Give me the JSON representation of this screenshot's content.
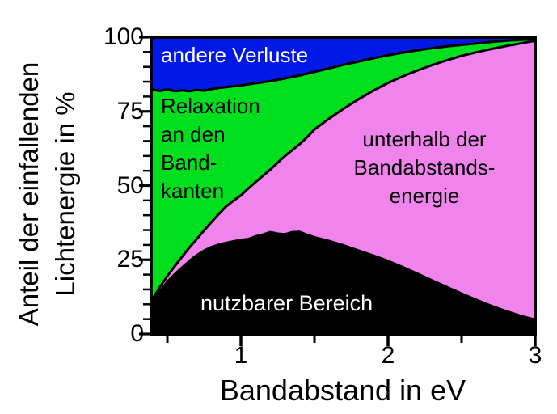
{
  "figure": {
    "background": "#ffffff"
  },
  "chart_data": {
    "type": "area",
    "stacked": true,
    "xlabel": "Bandabstand in eV",
    "ylabel_lines": [
      "Anteil der einfallenden",
      "Lichtenergie in %"
    ],
    "xlim": [
      0.39,
      3.0
    ],
    "ylim": [
      0,
      100
    ],
    "grid": false,
    "legend": "labels drawn inside areas",
    "x_major_ticks": [
      1,
      2,
      3
    ],
    "x_major_tick_labels": [
      "1",
      "2",
      "3"
    ],
    "x_minor_ticks": [
      0.5,
      1.5,
      2.5
    ],
    "y_major_ticks": [
      0,
      25,
      50,
      75,
      100
    ],
    "y_major_tick_labels": [
      "0",
      "25",
      "50",
      "75",
      "100"
    ],
    "y_minor_ticks": [
      5,
      10,
      15,
      20,
      30,
      35,
      40,
      45,
      55,
      60,
      65,
      70,
      80,
      85,
      90,
      95
    ],
    "outline_color": "#000000",
    "x": [
      0.39,
      0.45,
      0.5,
      0.55,
      0.6,
      0.65,
      0.7,
      0.75,
      0.8,
      0.85,
      0.9,
      0.95,
      1.0,
      1.05,
      1.1,
      1.15,
      1.2,
      1.25,
      1.3,
      1.35,
      1.4,
      1.45,
      1.5,
      1.6,
      1.7,
      1.8,
      1.9,
      2.0,
      2.1,
      2.2,
      2.3,
      2.4,
      2.5,
      2.6,
      2.7,
      2.8,
      2.9,
      3.0
    ],
    "series": [
      {
        "name": "nutzbarer Bereich",
        "color": "#000000",
        "label_lines": [
          "nutzbarer Bereich"
        ],
        "label_color": "#ffffff",
        "values": [
          10.5,
          14.3,
          17.6,
          20.1,
          22.4,
          24.6,
          26.5,
          28.1,
          29.3,
          30.1,
          30.7,
          31.2,
          31.7,
          32.0,
          32.9,
          33.5,
          34.3,
          33.8,
          33.6,
          34.3,
          34.4,
          33.4,
          32.6,
          31.3,
          29.8,
          28.1,
          26.4,
          24.6,
          22.5,
          20.3,
          18.0,
          15.8,
          13.6,
          11.5,
          9.5,
          7.7,
          6.1,
          4.8
        ]
      },
      {
        "name": "unterhalb der Bandabstandsenergie",
        "color": "#f083ec",
        "label_lines": [
          "unterhalb der",
          "Bandabstands-",
          "energie"
        ],
        "label_color": "#000000",
        "values": [
          0.5,
          1.5,
          1.9,
          2.7,
          3.6,
          4.5,
          5.5,
          6.8,
          8.4,
          10.3,
          12.3,
          13.7,
          15.0,
          17.0,
          18.3,
          19.8,
          21.1,
          23.9,
          26.4,
          27.7,
          29.6,
          32.9,
          36.3,
          41.3,
          46.2,
          51.0,
          55.6,
          60.0,
          64.3,
          68.5,
          72.6,
          76.4,
          80.1,
          83.4,
          86.5,
          89.3,
          91.8,
          94.0
        ]
      },
      {
        "name": "Relaxation an den Bandkanten",
        "color": "#00df1e",
        "label_lines": [
          "Relaxation",
          "an den",
          "Band-",
          "kanten"
        ],
        "label_color": "#000000",
        "values": [
          71.4,
          66.1,
          62.9,
          59.0,
          56.1,
          52.7,
          50.2,
          47.1,
          44.8,
          42.5,
          40.2,
          38.6,
          37.1,
          35.1,
          33.3,
          31.5,
          29.8,
          27.9,
          26.1,
          24.6,
          23.1,
          21.4,
          19.4,
          16.9,
          14.7,
          12.7,
          10.9,
          9.3,
          8.0,
          6.8,
          5.7,
          4.7,
          3.7,
          3.0,
          2.4,
          1.8,
          1.2,
          0.6
        ]
      },
      {
        "name": "andere Verluste",
        "color": "#0018e6",
        "label_lines": [
          "andere Verluste"
        ],
        "label_color": "#ffffff",
        "values": [
          17.6,
          18.1,
          17.6,
          18.2,
          17.9,
          18.2,
          17.8,
          18.0,
          17.5,
          17.1,
          16.8,
          16.5,
          16.2,
          15.9,
          15.5,
          15.2,
          14.8,
          14.4,
          13.9,
          13.4,
          12.9,
          12.3,
          11.7,
          10.5,
          9.3,
          8.2,
          7.1,
          6.1,
          5.2,
          4.4,
          3.7,
          3.1,
          2.6,
          2.1,
          1.6,
          1.2,
          0.9,
          0.6
        ]
      }
    ]
  }
}
